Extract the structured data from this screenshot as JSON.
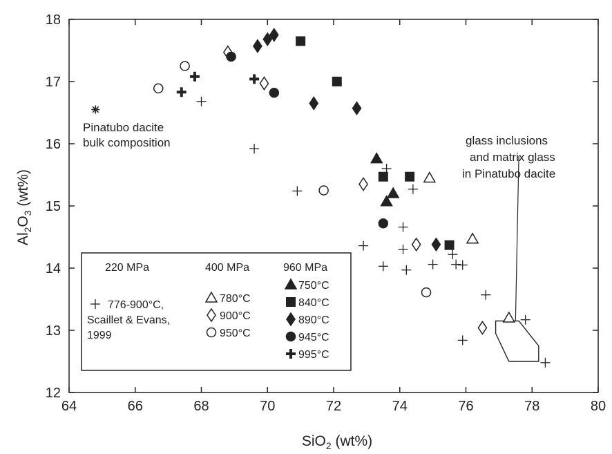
{
  "chart_data": {
    "type": "scatter",
    "xlabel": "SiO2 (wt%)",
    "xlabel_main": "SiO",
    "xlabel_sub": "2",
    "xlabel_unit": " (wt%)",
    "ylabel": "Al2O3 (wt%)",
    "ylabel_p1": "Al",
    "ylabel_s1": "2",
    "ylabel_p2": "O",
    "ylabel_s2": "3",
    "ylabel_unit": " (wt%)",
    "xlim": [
      64,
      80
    ],
    "ylim": [
      12,
      18
    ],
    "xticks": [
      "64",
      "66",
      "68",
      "70",
      "72",
      "74",
      "76",
      "78",
      "80"
    ],
    "yticks": [
      "12",
      "13",
      "14",
      "15",
      "16",
      "17",
      "18"
    ],
    "grid": false,
    "legend_position": "bottom-left",
    "annotations": {
      "bulk": [
        "Pinatubo dacite",
        "bulk composition"
      ],
      "glass": [
        "glass inclusions",
        "and matrix glass",
        "in Pinatubo dacite"
      ]
    },
    "legend": {
      "headers": [
        "220 MPa",
        "400 MPa",
        "960 MPa"
      ],
      "scaillet": [
        "776-900°C,",
        "Scaillet & Evans,",
        "1999"
      ],
      "p400": [
        "780°C",
        "900°C",
        "950°C"
      ],
      "p960": [
        "750°C",
        "840°C",
        "890°C",
        "945°C",
        "995°C"
      ]
    },
    "glass_field": [
      [
        76.9,
        13.15
      ],
      [
        77.6,
        13.15
      ],
      [
        78.2,
        12.75
      ],
      [
        78.2,
        12.5
      ],
      [
        77.3,
        12.5
      ],
      [
        76.9,
        12.95
      ]
    ],
    "glass_pointer": [
      [
        77.5,
        13.15
      ],
      [
        77.6,
        15.8
      ]
    ],
    "series": [
      {
        "name": "Pinatubo dacite bulk composition",
        "marker": "asterisk",
        "points": [
          [
            64.8,
            16.55
          ]
        ]
      },
      {
        "name": "776-900°C, Scaillet & Evans, 1999",
        "marker": "plus",
        "points": [
          [
            68.0,
            16.68
          ],
          [
            69.6,
            15.92
          ],
          [
            70.9,
            15.24
          ],
          [
            72.9,
            14.36
          ],
          [
            73.5,
            14.03
          ],
          [
            73.6,
            15.6
          ],
          [
            74.1,
            14.66
          ],
          [
            74.1,
            14.3
          ],
          [
            74.2,
            13.97
          ],
          [
            74.4,
            15.27
          ],
          [
            75.0,
            14.06
          ],
          [
            75.6,
            14.22
          ],
          [
            75.7,
            14.06
          ],
          [
            75.9,
            14.05
          ],
          [
            75.9,
            12.84
          ],
          [
            76.6,
            13.57
          ],
          [
            77.8,
            13.17
          ],
          [
            78.4,
            12.48
          ]
        ]
      },
      {
        "name": "780°C",
        "marker": "triangle-open",
        "points": [
          [
            74.9,
            15.45
          ],
          [
            76.2,
            14.47
          ],
          [
            77.3,
            13.2
          ]
        ]
      },
      {
        "name": "900°C",
        "marker": "diamond-open",
        "points": [
          [
            68.8,
            17.47
          ],
          [
            69.9,
            16.97
          ],
          [
            72.9,
            15.35
          ],
          [
            74.5,
            14.38
          ],
          [
            76.5,
            13.04
          ]
        ]
      },
      {
        "name": "950°C",
        "marker": "circle-open",
        "points": [
          [
            66.7,
            16.89
          ],
          [
            67.5,
            17.25
          ],
          [
            71.7,
            15.25
          ],
          [
            74.8,
            13.61
          ]
        ]
      },
      {
        "name": "750°C",
        "marker": "triangle-filled",
        "points": [
          [
            73.3,
            15.76
          ],
          [
            73.6,
            15.07
          ],
          [
            73.8,
            15.2
          ]
        ]
      },
      {
        "name": "840°C",
        "marker": "square-filled",
        "points": [
          [
            71.0,
            17.65
          ],
          [
            72.1,
            17.0
          ],
          [
            73.5,
            15.47
          ],
          [
            74.3,
            15.47
          ],
          [
            75.5,
            14.37
          ]
        ]
      },
      {
        "name": "890°C",
        "marker": "diamond-filled",
        "points": [
          [
            69.7,
            17.57
          ],
          [
            70.0,
            17.68
          ],
          [
            70.2,
            17.75
          ],
          [
            71.4,
            16.65
          ],
          [
            72.7,
            16.57
          ],
          [
            75.1,
            14.38
          ]
        ]
      },
      {
        "name": "945°C",
        "marker": "circle-filled",
        "points": [
          [
            68.9,
            17.4
          ],
          [
            70.2,
            16.82
          ],
          [
            73.5,
            14.72
          ]
        ]
      },
      {
        "name": "995°C",
        "marker": "cross-filled",
        "points": [
          [
            67.4,
            16.83
          ],
          [
            67.8,
            17.08
          ],
          [
            69.6,
            17.04
          ]
        ]
      }
    ]
  }
}
